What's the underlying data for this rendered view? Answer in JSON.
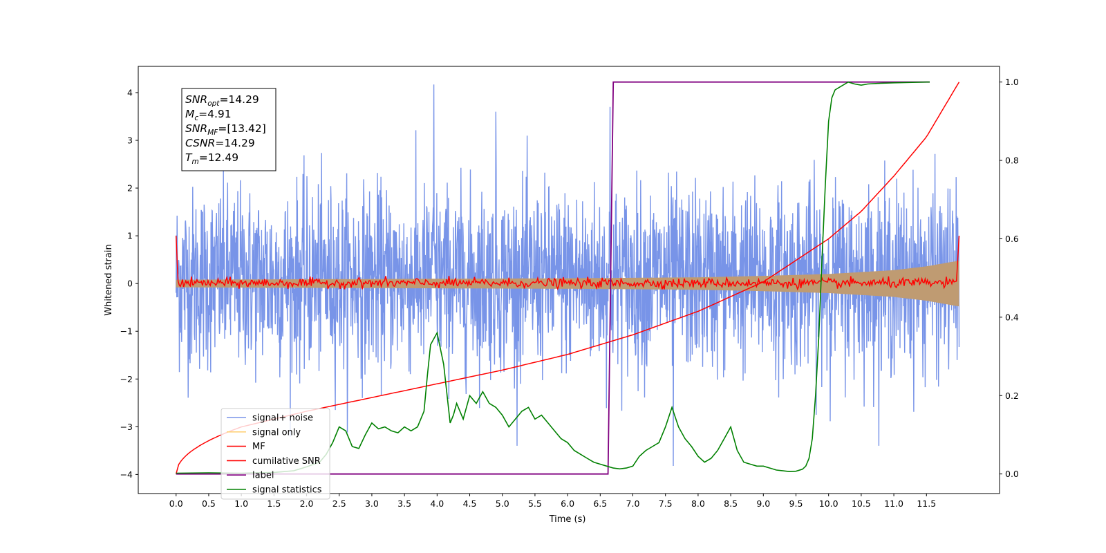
{
  "chart_data": {
    "type": "line",
    "xlabel": "Time (s)",
    "ylabel_left": "Whitened strain",
    "ylabel_right": "",
    "xlim": [
      -0.58,
      12.62
    ],
    "ylim_left": [
      -4.4,
      4.55
    ],
    "ylim_right": [
      -0.05,
      1.04
    ],
    "xticks": [
      0.0,
      0.5,
      1.0,
      1.5,
      2.0,
      2.5,
      3.0,
      3.5,
      4.0,
      4.5,
      5.0,
      5.5,
      6.0,
      6.5,
      7.0,
      7.5,
      8.0,
      8.5,
      9.0,
      9.5,
      10.0,
      10.5,
      11.0,
      11.5
    ],
    "xtick_labels": [
      "0.0",
      "0.5",
      "1.0",
      "1.5",
      "2.0",
      "2.5",
      "3.0",
      "3.5",
      "4.0",
      "4.5",
      "5.0",
      "5.5",
      "6.0",
      "6.5",
      "7.0",
      "7.5",
      "8.0",
      "8.5",
      "9.0",
      "9.5",
      "10.0",
      "10.5",
      "11.0",
      "11.5"
    ],
    "yticks_left": [
      -4,
      -3,
      -2,
      -1,
      0,
      1,
      2,
      3,
      4
    ],
    "ytick_labels_left": [
      "−4",
      "−3",
      "−2",
      "−1",
      "0",
      "1",
      "2",
      "3",
      "4"
    ],
    "yticks_right": [
      0.0,
      0.2,
      0.4,
      0.6,
      0.8,
      1.0
    ],
    "ytick_labels_right": [
      "0.0",
      "0.2",
      "0.4",
      "0.6",
      "0.8",
      "1.0"
    ],
    "grid": false,
    "legend_position": "lower-left",
    "info_box": {
      "lines": [
        {
          "main": "SNR",
          "sub": "opt",
          "rest": "=14.29"
        },
        {
          "main": "M",
          "sub": "c",
          "rest": "=4.91"
        },
        {
          "main": "SNR",
          "sub": "MF",
          "rest": "=[13.42]"
        },
        {
          "main": "CSNR",
          "sub": "",
          "rest": "=14.29"
        },
        {
          "main": "T",
          "sub": "m",
          "rest": "=12.49"
        }
      ]
    },
    "series": [
      {
        "name": "signal+ noise",
        "axis": "left",
        "color": "#7894e8",
        "kind": "noise",
        "x_range": [
          0.0,
          12.0
        ],
        "typical_range": [
          -2.0,
          2.5
        ],
        "peak_max": 4.17,
        "peak_min": -3.82
      },
      {
        "name": "signal only",
        "axis": "left",
        "color": "#bf9b72",
        "kind": "envelope",
        "x": [
          0.0,
          2.0,
          4.0,
          6.0,
          8.0,
          9.0,
          10.0,
          11.0,
          11.5,
          12.0
        ],
        "amplitude": [
          0.08,
          0.09,
          0.1,
          0.11,
          0.13,
          0.16,
          0.2,
          0.28,
          0.36,
          0.48
        ]
      },
      {
        "name": "MF",
        "axis": "left",
        "color": "#ff0000",
        "kind": "noise-small",
        "x_range": [
          0.0,
          12.0
        ],
        "edge_value": 1.0,
        "typical_range": [
          -0.1,
          0.15
        ]
      },
      {
        "name": "cumilative SNR",
        "axis": "right",
        "color": "#ff0000",
        "kind": "line",
        "x": [
          0.0,
          1.0,
          2.0,
          3.0,
          4.0,
          5.0,
          6.0,
          7.0,
          8.0,
          9.0,
          10.0,
          10.5,
          11.0,
          11.5,
          12.0
        ],
        "y": [
          0.0,
          0.12,
          0.16,
          0.195,
          0.23,
          0.265,
          0.305,
          0.355,
          0.415,
          0.49,
          0.6,
          0.67,
          0.76,
          0.86,
          1.0
        ]
      },
      {
        "name": "label",
        "axis": "right",
        "color": "#800080",
        "kind": "line",
        "x": [
          0.0,
          6.62,
          6.7,
          11.55
        ],
        "y": [
          0.0,
          0.0,
          1.0,
          1.0
        ]
      },
      {
        "name": "signal statistics",
        "axis": "right",
        "color": "#008000",
        "kind": "line",
        "x": [
          0.0,
          0.5,
          1.0,
          1.5,
          1.8,
          2.0,
          2.2,
          2.3,
          2.4,
          2.5,
          2.6,
          2.7,
          2.8,
          2.9,
          3.0,
          3.1,
          3.2,
          3.3,
          3.4,
          3.5,
          3.6,
          3.7,
          3.75,
          3.8,
          3.85,
          3.9,
          4.0,
          4.1,
          4.2,
          4.25,
          4.3,
          4.4,
          4.5,
          4.6,
          4.7,
          4.8,
          4.9,
          5.0,
          5.1,
          5.2,
          5.3,
          5.4,
          5.5,
          5.6,
          5.7,
          5.8,
          5.9,
          6.0,
          6.1,
          6.2,
          6.3,
          6.4,
          6.5,
          6.6,
          6.7,
          6.8,
          6.9,
          7.0,
          7.1,
          7.2,
          7.3,
          7.4,
          7.5,
          7.6,
          7.7,
          7.8,
          7.9,
          8.0,
          8.1,
          8.2,
          8.3,
          8.4,
          8.5,
          8.6,
          8.7,
          8.8,
          8.9,
          9.0,
          9.1,
          9.2,
          9.3,
          9.4,
          9.5,
          9.6,
          9.65,
          9.7,
          9.75,
          9.8,
          9.85,
          9.9,
          9.95,
          10.0,
          10.05,
          10.1,
          10.2,
          10.3,
          10.4,
          10.5,
          10.6,
          10.8,
          11.0,
          11.5,
          11.55
        ],
        "y": [
          0.002,
          0.003,
          0.002,
          0.004,
          0.008,
          0.018,
          0.03,
          0.05,
          0.08,
          0.12,
          0.11,
          0.07,
          0.065,
          0.1,
          0.13,
          0.115,
          0.12,
          0.11,
          0.105,
          0.12,
          0.11,
          0.12,
          0.14,
          0.16,
          0.25,
          0.33,
          0.36,
          0.28,
          0.13,
          0.15,
          0.18,
          0.14,
          0.2,
          0.18,
          0.21,
          0.18,
          0.17,
          0.15,
          0.12,
          0.14,
          0.16,
          0.17,
          0.14,
          0.15,
          0.13,
          0.11,
          0.09,
          0.08,
          0.06,
          0.05,
          0.04,
          0.03,
          0.025,
          0.02,
          0.015,
          0.013,
          0.015,
          0.02,
          0.045,
          0.06,
          0.07,
          0.08,
          0.12,
          0.17,
          0.12,
          0.09,
          0.07,
          0.045,
          0.03,
          0.04,
          0.06,
          0.09,
          0.12,
          0.06,
          0.03,
          0.025,
          0.02,
          0.02,
          0.015,
          0.01,
          0.008,
          0.006,
          0.007,
          0.012,
          0.02,
          0.04,
          0.09,
          0.2,
          0.35,
          0.55,
          0.74,
          0.9,
          0.96,
          0.98,
          0.99,
          1.0,
          0.995,
          0.992,
          0.995,
          0.997,
          0.998,
          1.0,
          1.0
        ]
      }
    ]
  }
}
